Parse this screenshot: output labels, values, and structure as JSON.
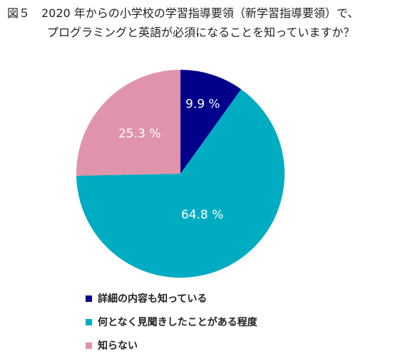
{
  "title": {
    "line1": "図５　2020 年からの小学校の学習指導要領（新学習指導要領）で、",
    "line2": "プログラミングと英語が必須になることを知っていますか？"
  },
  "colors": {
    "navy": "#00008b",
    "teal": "#00acc1",
    "pink": "#e094ab"
  },
  "chart_data": {
    "type": "pie",
    "slices": [
      {
        "label": "詳細の内容も知っている",
        "value": 9.9,
        "display": "9.9 %",
        "color": "#00008b"
      },
      {
        "label": "何となく見聞きしたことがある程度",
        "value": 64.8,
        "display": "64.8 %",
        "color": "#00acc1"
      },
      {
        "label": "知らない",
        "value": 25.3,
        "display": "25.3 %",
        "color": "#e094ab"
      }
    ],
    "start": "12 o'clock",
    "direction": "clockwise",
    "legend_placement": "bottom"
  }
}
